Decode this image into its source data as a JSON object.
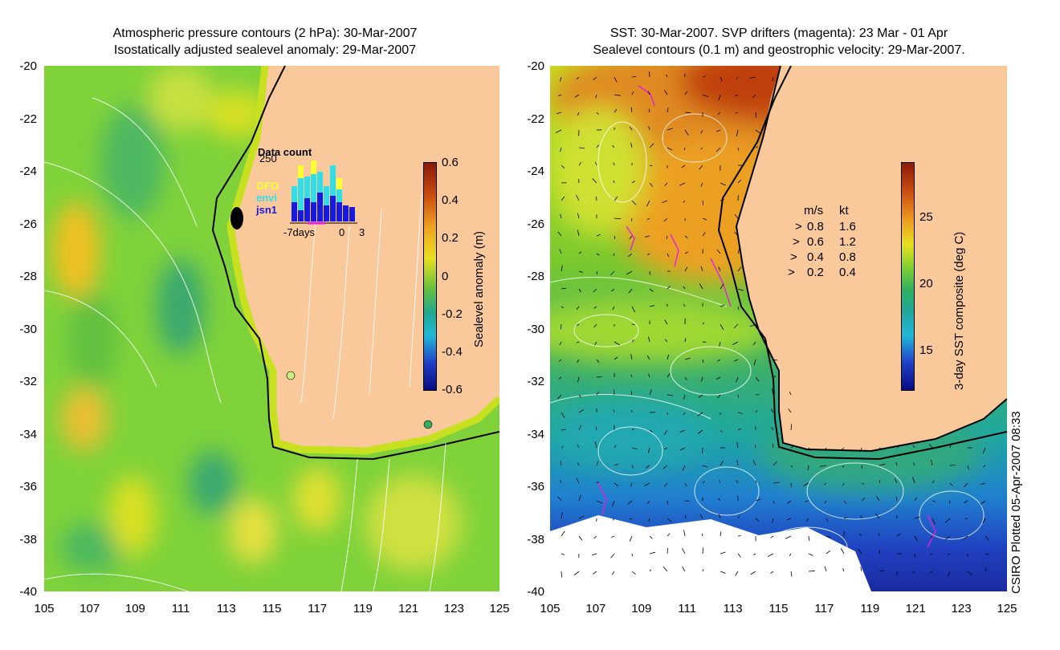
{
  "left_panel": {
    "title_line1": "Atmospheric pressure contours (2 hPa): 30-Mar-2007",
    "title_line2": "Isostatically adjusted sealevel anomaly: 29-Mar-2007",
    "y_ticks": [
      "-20",
      "-22",
      "-24",
      "-26",
      "-28",
      "-30",
      "-32",
      "-34",
      "-36",
      "-38",
      "-40"
    ],
    "x_ticks": [
      "105",
      "107",
      "109",
      "111",
      "113",
      "115",
      "117",
      "119",
      "121",
      "123",
      "125"
    ],
    "colorbar": {
      "label": "Sealevel anomaly (m)",
      "ticks": [
        "0.6",
        "0.4",
        "0.2",
        "0",
        "-0.2",
        "-0.4",
        "-0.6"
      ],
      "range": [
        -0.6,
        0.6
      ]
    },
    "inset": {
      "title": "Data count",
      "y_max_label": "250",
      "legend": [
        {
          "label": "GFO",
          "color": "#ffff33"
        },
        {
          "label": "envi",
          "color": "#33dde6"
        },
        {
          "label": "jsn1",
          "color": "#1a1adc"
        }
      ],
      "x_labels": [
        "-7days",
        "0",
        "3"
      ]
    }
  },
  "right_panel": {
    "title_line1": "SST: 30-Mar-2007. SVP drifters (magenta): 23 Mar - 01 Apr",
    "title_line2": "Sealevel contours (0.1 m) and geostrophic velocity: 29-Mar-2007.",
    "y_ticks": [
      "-20",
      "-22",
      "-24",
      "-26",
      "-28",
      "-30",
      "-32",
      "-34",
      "-36",
      "-38",
      "-40"
    ],
    "x_ticks": [
      "105",
      "107",
      "109",
      "111",
      "113",
      "115",
      "117",
      "119",
      "121",
      "123",
      "125"
    ],
    "colorbar": {
      "label": "3-day SST composite (deg C)",
      "ticks": [
        "25",
        "20",
        "15"
      ]
    },
    "velocity_legend": {
      "header_ms": "m/s",
      "header_kt": "kt",
      "rows": [
        {
          "ms": "0.8",
          "kt": "1.6"
        },
        {
          "ms": "0.6",
          "kt": "1.2"
        },
        {
          "ms": "0.4",
          "kt": "0.8"
        },
        {
          "ms": "0.2",
          "kt": "0.4"
        }
      ]
    }
  },
  "credit": "CSIRO Plotted 05-Apr-2007 08:33",
  "colors": {
    "land": "#f9c99c",
    "coast": "#000000",
    "drifter": "#e020e0"
  }
}
